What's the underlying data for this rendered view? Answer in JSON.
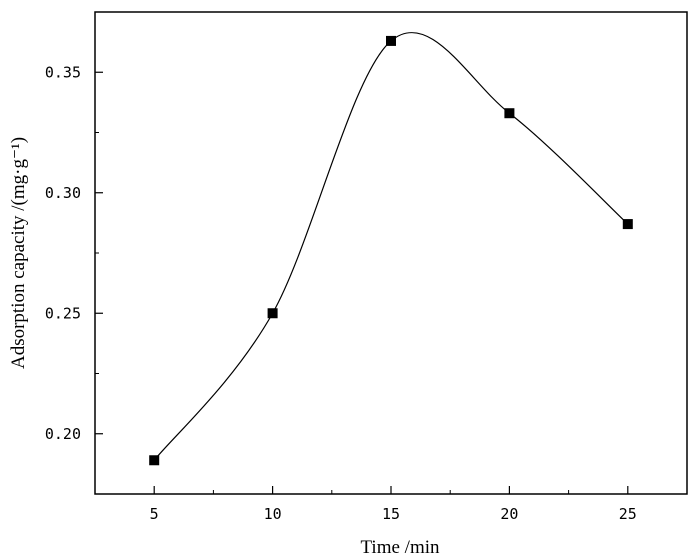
{
  "chart_data": {
    "type": "scatter",
    "x": [
      5,
      10,
      15,
      20,
      25
    ],
    "y": [
      0.189,
      0.25,
      0.363,
      0.333,
      0.287
    ],
    "xlabel": "Time /min",
    "ylabel": "Adsorption capacity /(mg·g⁻¹)",
    "xlim": [
      2.5,
      27.5
    ],
    "ylim": [
      0.175,
      0.375
    ],
    "xticks": [
      5,
      10,
      15,
      20,
      25
    ],
    "yticks": [
      0.2,
      0.25,
      0.3,
      0.35
    ],
    "xtick_labels": [
      "5",
      "10",
      "15",
      "20",
      "25"
    ],
    "ytick_labels": [
      "0.20",
      "0.25",
      "0.30",
      "0.35"
    ],
    "marker": "square",
    "smooth_line": true,
    "grid": false,
    "colors": {
      "line": "#000000",
      "marker": "#000000",
      "axis": "#000000"
    }
  }
}
